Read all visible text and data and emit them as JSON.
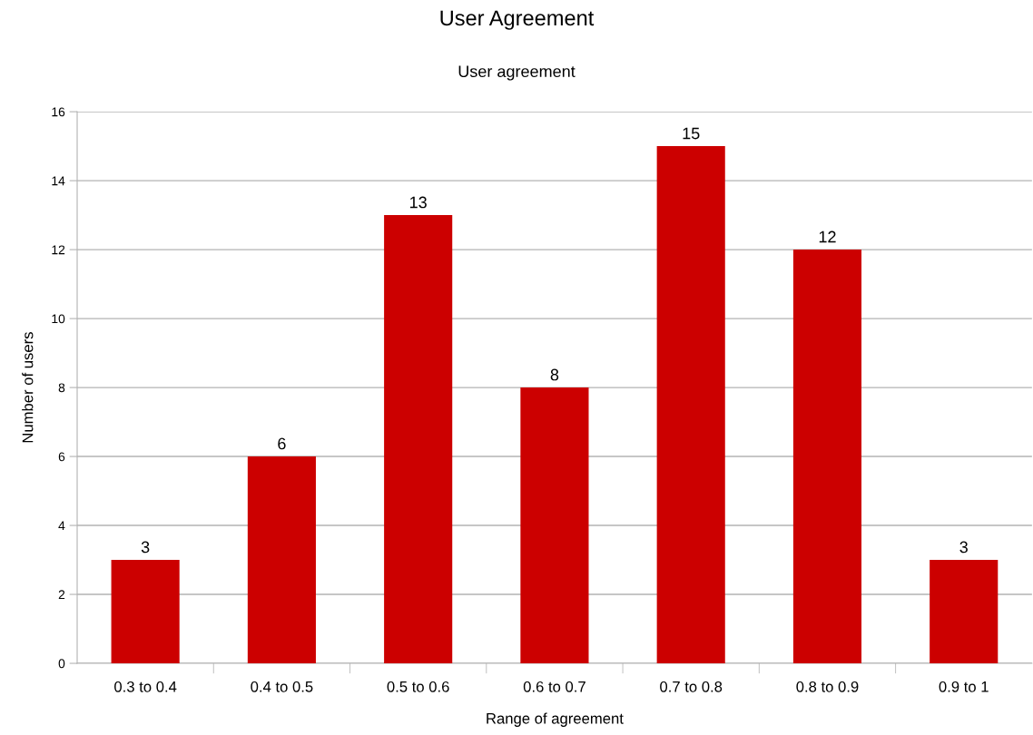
{
  "chart_data": {
    "type": "bar",
    "title": "User Agreement",
    "subtitle": "User agreement",
    "xlabel": "Range of agreement",
    "ylabel": "Number of users",
    "categories": [
      "0.3 to 0.4",
      "0.4 to 0.5",
      "0.5 to 0.6",
      "0.6 to 0.7",
      "0.7 to 0.8",
      "0.8 to 0.9",
      "0.9 to 1"
    ],
    "values": [
      3,
      6,
      13,
      8,
      15,
      12,
      3
    ],
    "color": "#cc0000",
    "ylim": [
      0,
      16
    ],
    "yticks": [
      0,
      2,
      4,
      6,
      8,
      10,
      12,
      14,
      16
    ],
    "grid": "y",
    "data_labels": true
  }
}
